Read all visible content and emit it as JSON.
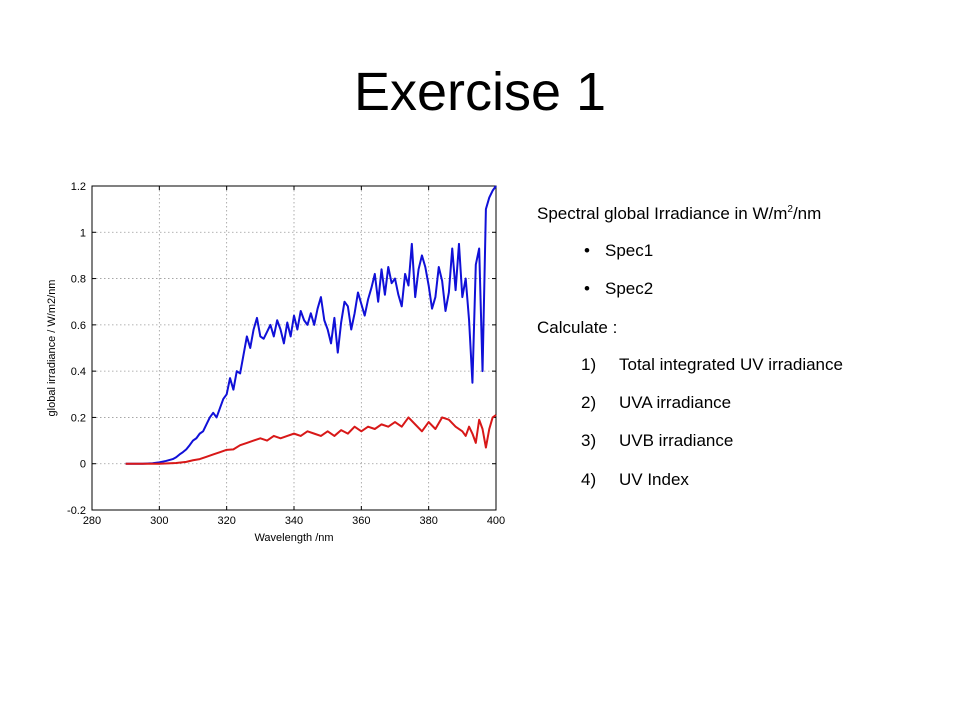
{
  "slide": {
    "title": "Exercise 1"
  },
  "panel": {
    "heading_prefix": "Spectral global Irradiance in W/m",
    "heading_sup": "2",
    "heading_suffix": "/nm",
    "bullets": [
      "Spec1",
      "Spec2"
    ],
    "calc_label": "Calculate :",
    "steps": [
      {
        "marker": "1)",
        "text": "Total integrated UV irradiance"
      },
      {
        "marker": "2)",
        "text": "UVA irradiance"
      },
      {
        "marker": "3)",
        "text": "UVB irradiance"
      },
      {
        "marker": "4)",
        "text": "UV Index"
      }
    ]
  },
  "chart_data": {
    "type": "line",
    "xlabel": "Wavelength /nm",
    "ylabel": "global irradiance / W/m2/nm",
    "xlim": [
      280,
      400
    ],
    "ylim": [
      -0.2,
      1.2
    ],
    "xticks": [
      280,
      300,
      320,
      340,
      360,
      380,
      400
    ],
    "yticks": [
      -0.2,
      0,
      0.2,
      0.4,
      0.6,
      0.8,
      1,
      1.2
    ],
    "ytick_labels": [
      "-0.2",
      "0",
      "0.2",
      "0.4",
      "0.6",
      "0.8",
      "1",
      "1.2"
    ],
    "grid": true,
    "series": [
      {
        "color": "#1010d8",
        "x": [
          290,
          295,
          298,
          300,
          302,
          304,
          305,
          306,
          307,
          308,
          309,
          310,
          311,
          312,
          313,
          314,
          315,
          316,
          317,
          318,
          319,
          320,
          321,
          322,
          323,
          324,
          325,
          326,
          327,
          328,
          329,
          330,
          331,
          332,
          333,
          334,
          335,
          336,
          337,
          338,
          339,
          340,
          341,
          342,
          343,
          344,
          345,
          346,
          347,
          348,
          349,
          350,
          351,
          352,
          353,
          354,
          355,
          356,
          357,
          358,
          359,
          360,
          361,
          362,
          363,
          364,
          365,
          366,
          367,
          368,
          369,
          370,
          371,
          372,
          373,
          374,
          375,
          376,
          377,
          378,
          379,
          380,
          381,
          382,
          383,
          384,
          385,
          386,
          387,
          388,
          389,
          390,
          391,
          392,
          393,
          394,
          395,
          396,
          397,
          398,
          399,
          400
        ],
        "y": [
          0,
          0,
          0.002,
          0.006,
          0.012,
          0.02,
          0.028,
          0.04,
          0.05,
          0.062,
          0.08,
          0.1,
          0.11,
          0.13,
          0.14,
          0.17,
          0.2,
          0.22,
          0.2,
          0.24,
          0.28,
          0.3,
          0.37,
          0.32,
          0.4,
          0.39,
          0.47,
          0.55,
          0.5,
          0.58,
          0.63,
          0.55,
          0.54,
          0.57,
          0.6,
          0.55,
          0.62,
          0.58,
          0.52,
          0.61,
          0.55,
          0.64,
          0.58,
          0.66,
          0.62,
          0.6,
          0.65,
          0.6,
          0.67,
          0.72,
          0.62,
          0.58,
          0.52,
          0.63,
          0.48,
          0.61,
          0.7,
          0.68,
          0.58,
          0.65,
          0.74,
          0.69,
          0.64,
          0.71,
          0.76,
          0.82,
          0.7,
          0.84,
          0.73,
          0.85,
          0.78,
          0.8,
          0.73,
          0.68,
          0.82,
          0.77,
          0.95,
          0.72,
          0.84,
          0.9,
          0.85,
          0.77,
          0.67,
          0.72,
          0.85,
          0.79,
          0.66,
          0.74,
          0.93,
          0.75,
          0.95,
          0.72,
          0.8,
          0.62,
          0.35,
          0.86,
          0.93,
          0.4,
          1.1,
          1.15,
          1.18,
          1.2
        ]
      },
      {
        "color": "#d81818",
        "x": [
          290,
          295,
          300,
          305,
          308,
          310,
          312,
          314,
          316,
          318,
          320,
          322,
          324,
          326,
          328,
          330,
          332,
          334,
          336,
          338,
          340,
          342,
          344,
          346,
          348,
          350,
          352,
          354,
          356,
          358,
          360,
          362,
          364,
          366,
          368,
          370,
          372,
          374,
          376,
          378,
          380,
          382,
          384,
          386,
          388,
          390,
          391,
          392,
          393,
          394,
          395,
          396,
          397,
          398,
          399,
          400
        ],
        "y": [
          0,
          0,
          0,
          0.003,
          0.008,
          0.015,
          0.02,
          0.03,
          0.04,
          0.05,
          0.06,
          0.062,
          0.08,
          0.09,
          0.1,
          0.11,
          0.1,
          0.12,
          0.11,
          0.12,
          0.13,
          0.12,
          0.14,
          0.13,
          0.12,
          0.14,
          0.12,
          0.145,
          0.13,
          0.16,
          0.14,
          0.16,
          0.15,
          0.17,
          0.16,
          0.18,
          0.16,
          0.2,
          0.17,
          0.14,
          0.18,
          0.15,
          0.2,
          0.19,
          0.16,
          0.14,
          0.12,
          0.16,
          0.13,
          0.09,
          0.19,
          0.15,
          0.07,
          0.15,
          0.2,
          0.21
        ]
      }
    ]
  }
}
